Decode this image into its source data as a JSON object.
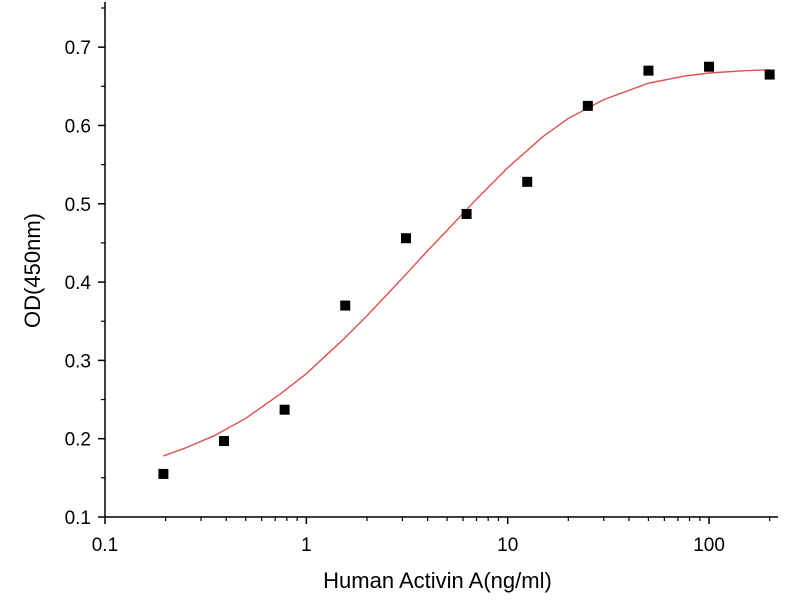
{
  "chart_data": {
    "type": "scatter",
    "title": "",
    "xlabel": "Human Activin A(ng/ml)",
    "ylabel": "OD(450nm)",
    "xscale": "log",
    "xlim": [
      0.1,
      220
    ],
    "ylim": [
      0.1,
      0.75
    ],
    "x_ticks": [
      0.1,
      1,
      10,
      100
    ],
    "x_tick_labels": [
      "0.1",
      "1",
      "10",
      "100"
    ],
    "y_ticks": [
      0.1,
      0.2,
      0.3,
      0.4,
      0.5,
      0.6,
      0.7
    ],
    "y_tick_labels": [
      "0.1",
      "0.2",
      "0.3",
      "0.4",
      "0.5",
      "0.6",
      "0.7"
    ],
    "grid": false,
    "legend": "none",
    "series": [
      {
        "type": "scatter",
        "marker": "square",
        "color": "#000000",
        "x": [
          0.195,
          0.39,
          0.78,
          1.56,
          3.125,
          6.25,
          12.5,
          25,
          50,
          100,
          200
        ],
        "y": [
          0.155,
          0.197,
          0.237,
          0.37,
          0.456,
          0.487,
          0.528,
          0.625,
          0.67,
          0.675,
          0.665
        ]
      },
      {
        "type": "line",
        "color": "#e05050",
        "fit": "four-parameter logistic",
        "x": [
          0.195,
          0.25,
          0.35,
          0.5,
          0.75,
          1,
          1.5,
          2,
          3,
          4,
          5,
          7,
          10,
          15,
          20,
          30,
          50,
          75,
          100,
          150,
          200
        ],
        "y": [
          0.178,
          0.188,
          0.204,
          0.226,
          0.258,
          0.283,
          0.325,
          0.357,
          0.405,
          0.44,
          0.466,
          0.506,
          0.546,
          0.586,
          0.609,
          0.633,
          0.654,
          0.663,
          0.667,
          0.67,
          0.671
        ]
      }
    ]
  }
}
